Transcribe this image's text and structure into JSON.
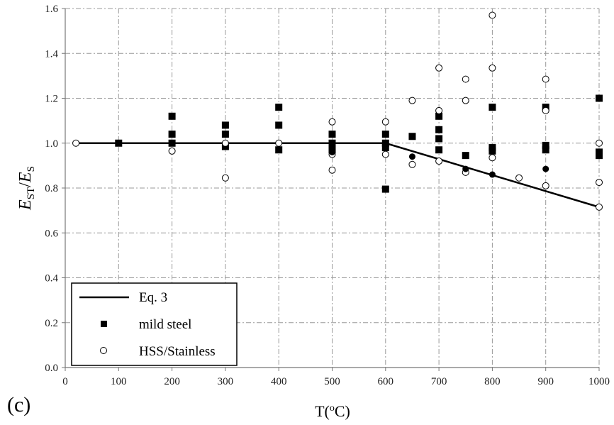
{
  "chart_data": {
    "type": "scatter",
    "panel_label": "(c)",
    "xlabel": {
      "base": "T(",
      "sup": "o",
      "rest": "C)"
    },
    "ylabel": {
      "e1": "E",
      "sub1": "ST",
      "slash": "/",
      "e2": "E",
      "sub2": "S"
    },
    "xlim": [
      0,
      1000
    ],
    "ylim": [
      0,
      1.6
    ],
    "x_ticks": [
      0,
      100,
      200,
      300,
      400,
      500,
      600,
      700,
      800,
      900,
      1000
    ],
    "y_ticks": [
      0.0,
      0.2,
      0.4,
      0.6,
      0.8,
      1.0,
      1.2,
      1.4,
      1.6
    ],
    "y_tick_labels": [
      "0.0",
      "0.2",
      "0.4",
      "0.6",
      "0.8",
      "1.0",
      "1.2",
      "1.4",
      "1.6"
    ],
    "grid": true,
    "legend_position": "bottom-left",
    "series": [
      {
        "name": "Eq. 3",
        "type": "line",
        "color": "#000000",
        "points": [
          [
            20,
            1.0
          ],
          [
            600,
            1.0
          ],
          [
            1000,
            0.715
          ]
        ]
      },
      {
        "name": "mild steel",
        "type": "scatter",
        "marker": "filled-square",
        "color": "#000000",
        "points": [
          [
            100,
            1.0
          ],
          [
            200,
            1.12
          ],
          [
            200,
            1.04
          ],
          [
            200,
            1.0
          ],
          [
            300,
            1.08
          ],
          [
            300,
            1.04
          ],
          [
            300,
            0.985
          ],
          [
            400,
            1.16
          ],
          [
            400,
            1.08
          ],
          [
            400,
            0.97
          ],
          [
            500,
            1.04
          ],
          [
            500,
            1.0
          ],
          [
            500,
            0.97
          ],
          [
            600,
            1.04
          ],
          [
            600,
            1.0
          ],
          [
            600,
            0.98
          ],
          [
            600,
            0.795
          ],
          [
            650,
            1.03
          ],
          [
            700,
            1.12
          ],
          [
            700,
            1.06
          ],
          [
            700,
            1.02
          ],
          [
            700,
            0.97
          ],
          [
            750,
            0.945
          ],
          [
            800,
            1.16
          ],
          [
            800,
            0.98
          ],
          [
            800,
            0.965
          ],
          [
            900,
            1.16
          ],
          [
            900,
            0.99
          ],
          [
            900,
            0.97
          ],
          [
            1000,
            1.2
          ],
          [
            1000,
            0.96
          ],
          [
            1000,
            0.945
          ]
        ]
      },
      {
        "name": "HSS/Stainless",
        "type": "scatter",
        "marker": "open-circle",
        "color": "#000000",
        "points": [
          [
            20,
            1.0
          ],
          [
            200,
            0.965
          ],
          [
            300,
            1.0
          ],
          [
            300,
            0.845
          ],
          [
            400,
            1.0
          ],
          [
            500,
            1.095
          ],
          [
            500,
            0.95
          ],
          [
            500,
            0.88
          ],
          [
            600,
            1.095
          ],
          [
            600,
            0.95
          ],
          [
            650,
            1.19
          ],
          [
            650,
            0.905
          ],
          [
            700,
            1.335
          ],
          [
            700,
            1.145
          ],
          [
            700,
            0.92
          ],
          [
            750,
            1.285
          ],
          [
            750,
            1.19
          ],
          [
            750,
            0.87
          ],
          [
            800,
            1.57
          ],
          [
            800,
            1.335
          ],
          [
            800,
            0.935
          ],
          [
            850,
            0.845
          ],
          [
            900,
            1.285
          ],
          [
            900,
            1.145
          ],
          [
            900,
            0.81
          ],
          [
            1000,
            1.0
          ],
          [
            1000,
            0.825
          ],
          [
            1000,
            0.715
          ]
        ]
      },
      {
        "name": "",
        "type": "scatter",
        "marker": "filled-circle",
        "color": "#000000",
        "points": [
          [
            500,
            0.96
          ],
          [
            650,
            0.94
          ],
          [
            750,
            0.885
          ],
          [
            800,
            0.86
          ],
          [
            900,
            0.885
          ]
        ]
      }
    ]
  }
}
